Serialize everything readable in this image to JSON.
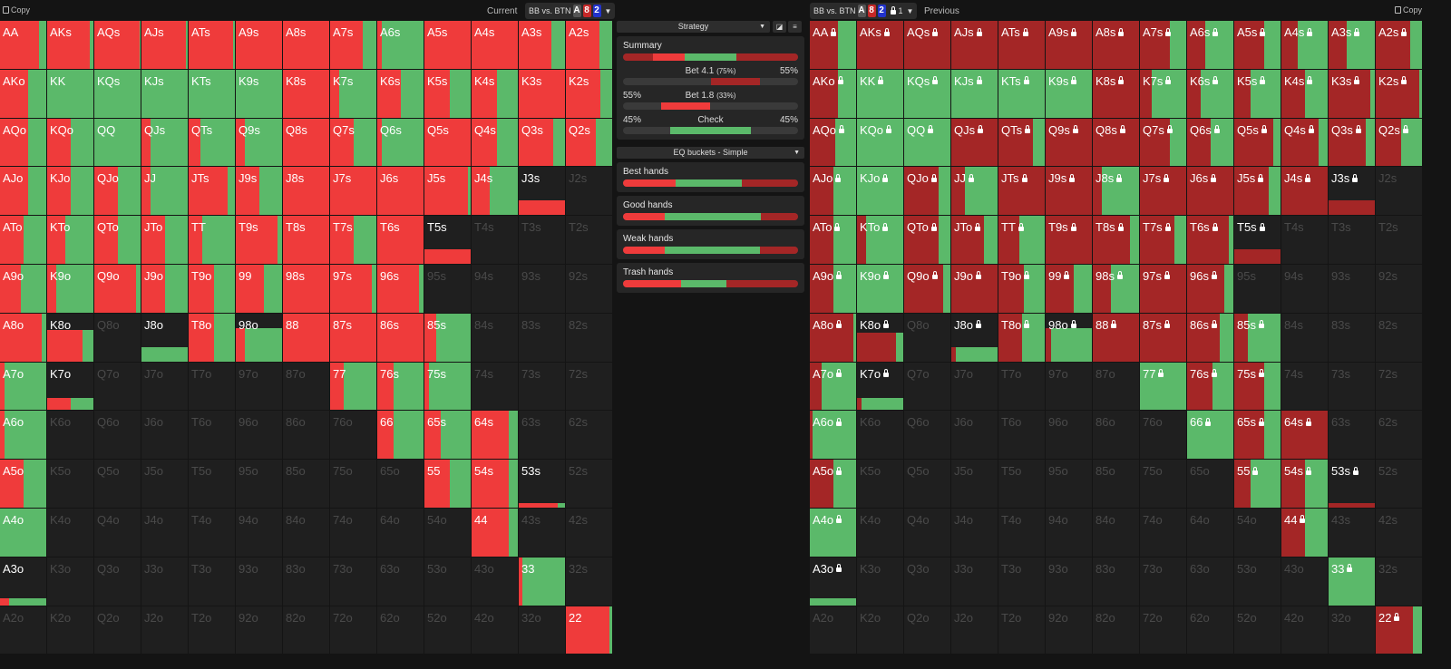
{
  "header": {
    "copy_left": "Copy",
    "current": "Current",
    "sel_left": {
      "text": "BB vs. BTN",
      "cards": [
        "A",
        "8",
        "2"
      ]
    },
    "sel_right": {
      "text": "BB vs. BTN",
      "cards": [
        "A",
        "8",
        "2"
      ],
      "lock_count": "1"
    },
    "previous": "Previous",
    "copy_right": "Copy"
  },
  "colors": {
    "bet_small": "#ef3b3b",
    "bet_big": "#a42626",
    "check": "#5bb96a",
    "out": "#1f1f1f"
  },
  "labels": [
    [
      "AA",
      "AKs",
      "AQs",
      "AJs",
      "ATs",
      "A9s",
      "A8s",
      "A7s",
      "A6s",
      "A5s",
      "A4s",
      "A3s",
      "A2s"
    ],
    [
      "AKo",
      "KK",
      "KQs",
      "KJs",
      "KTs",
      "K9s",
      "K8s",
      "K7s",
      "K6s",
      "K5s",
      "K4s",
      "K3s",
      "K2s"
    ],
    [
      "AQo",
      "KQo",
      "QQ",
      "QJs",
      "QTs",
      "Q9s",
      "Q8s",
      "Q7s",
      "Q6s",
      "Q5s",
      "Q4s",
      "Q3s",
      "Q2s"
    ],
    [
      "AJo",
      "KJo",
      "QJo",
      "JJ",
      "JTs",
      "J9s",
      "J8s",
      "J7s",
      "J6s",
      "J5s",
      "J4s",
      "J3s",
      "J2s"
    ],
    [
      "ATo",
      "KTo",
      "QTo",
      "JTo",
      "TT",
      "T9s",
      "T8s",
      "T7s",
      "T6s",
      "T5s",
      "T4s",
      "T3s",
      "T2s"
    ],
    [
      "A9o",
      "K9o",
      "Q9o",
      "J9o",
      "T9o",
      "99",
      "98s",
      "97s",
      "96s",
      "95s",
      "94s",
      "93s",
      "92s"
    ],
    [
      "A8o",
      "K8o",
      "Q8o",
      "J8o",
      "T8o",
      "98o",
      "88",
      "87s",
      "86s",
      "85s",
      "84s",
      "83s",
      "82s"
    ],
    [
      "A7o",
      "K7o",
      "Q7o",
      "J7o",
      "T7o",
      "97o",
      "87o",
      "77",
      "76s",
      "75s",
      "74s",
      "73s",
      "72s"
    ],
    [
      "A6o",
      "K6o",
      "Q6o",
      "J6o",
      "T6o",
      "96o",
      "86o",
      "76o",
      "66",
      "65s",
      "64s",
      "63s",
      "62s"
    ],
    [
      "A5o",
      "K5o",
      "Q5o",
      "J5o",
      "T5o",
      "95o",
      "85o",
      "75o",
      "65o",
      "55",
      "54s",
      "53s",
      "52s"
    ],
    [
      "A4o",
      "K4o",
      "Q4o",
      "J4o",
      "T4o",
      "94o",
      "84o",
      "74o",
      "64o",
      "54o",
      "44",
      "43s",
      "42s"
    ],
    [
      "A3o",
      "K3o",
      "Q3o",
      "J3o",
      "T3o",
      "93o",
      "83o",
      "73o",
      "63o",
      "53o",
      "43o",
      "33",
      "32s"
    ],
    [
      "A2o",
      "K2o",
      "Q2o",
      "J2o",
      "T2o",
      "92o",
      "82o",
      "72o",
      "62o",
      "52o",
      "42o",
      "32o",
      "22"
    ]
  ],
  "current_grid": [
    [
      [
        1,
        0.85
      ],
      [
        1,
        0.93
      ],
      [
        1,
        0.98
      ],
      [
        1,
        0.97
      ],
      [
        1,
        0.97
      ],
      [
        1,
        1
      ],
      [
        1,
        1
      ],
      [
        1,
        0.7
      ],
      [
        1,
        0.1
      ],
      [
        1,
        1
      ],
      [
        1,
        1
      ],
      [
        1,
        0.7
      ],
      [
        1,
        0.73
      ]
    ],
    [
      [
        1,
        0.6
      ],
      [
        1,
        0
      ],
      [
        1,
        0
      ],
      [
        1,
        0
      ],
      [
        1,
        0
      ],
      [
        1,
        0
      ],
      [
        1,
        1
      ],
      [
        1,
        0.2
      ],
      [
        1,
        0.5
      ],
      [
        1,
        0.55
      ],
      [
        1,
        0.55
      ],
      [
        1,
        1
      ],
      [
        1,
        0.75
      ]
    ],
    [
      [
        1,
        0.6
      ],
      [
        1,
        0.5
      ],
      [
        1,
        0
      ],
      [
        1,
        0.2
      ],
      [
        1,
        0.25
      ],
      [
        1,
        0.2
      ],
      [
        1,
        1
      ],
      [
        1,
        0.5
      ],
      [
        1,
        0.1
      ],
      [
        1,
        1
      ],
      [
        1,
        0.55
      ],
      [
        1,
        0.75
      ],
      [
        1,
        0.65
      ]
    ],
    [
      [
        1,
        0.6
      ],
      [
        1,
        0.5
      ],
      [
        1,
        0.5
      ],
      [
        1,
        0.2
      ],
      [
        1,
        0.85
      ],
      [
        1,
        0.5
      ],
      [
        1,
        1
      ],
      [
        1,
        1
      ],
      [
        1,
        1
      ],
      [
        1,
        0.95
      ],
      [
        1,
        0.4
      ],
      [
        0.3,
        1
      ],
      [
        0,
        0
      ]
    ],
    [
      [
        1,
        0.5
      ],
      [
        1,
        0.4
      ],
      [
        1,
        0.5
      ],
      [
        1,
        0.5
      ],
      [
        1,
        0.3
      ],
      [
        1,
        0.9
      ],
      [
        1,
        1
      ],
      [
        1,
        0.5
      ],
      [
        1,
        1
      ],
      [
        0.3,
        1
      ],
      [
        0,
        0
      ],
      [
        0,
        0
      ],
      [
        0,
        0
      ]
    ],
    [
      [
        1,
        0.45
      ],
      [
        1,
        0.2
      ],
      [
        1,
        0.9
      ],
      [
        1,
        0.5
      ],
      [
        1,
        0.55
      ],
      [
        1,
        0.6
      ],
      [
        1,
        1
      ],
      [
        1,
        0.9
      ],
      [
        1,
        0.9
      ],
      [
        0,
        0
      ],
      [
        0,
        0
      ],
      [
        0,
        0
      ],
      [
        0,
        0
      ]
    ],
    [
      [
        1,
        0.9
      ],
      [
        0.65,
        0.77
      ],
      [
        0,
        0
      ],
      [
        0.3,
        0
      ],
      [
        1,
        0.55
      ],
      [
        0.7,
        0.2
      ],
      [
        1,
        1
      ],
      [
        1,
        1
      ],
      [
        1,
        1
      ],
      [
        1,
        0.25
      ],
      [
        0,
        0
      ],
      [
        0,
        0
      ],
      [
        0,
        0
      ]
    ],
    [
      [
        1,
        0.1
      ],
      [
        0.25,
        0.5
      ],
      [
        0,
        0
      ],
      [
        0,
        0
      ],
      [
        0,
        0
      ],
      [
        0,
        0
      ],
      [
        0,
        0
      ],
      [
        1,
        0.3
      ],
      [
        1,
        0.35
      ],
      [
        1,
        0.1
      ],
      [
        0,
        0
      ],
      [
        0,
        0
      ],
      [
        0,
        0
      ]
    ],
    [
      [
        1,
        0.1
      ],
      [
        0,
        0
      ],
      [
        0,
        0
      ],
      [
        0,
        0
      ],
      [
        0,
        0
      ],
      [
        0,
        0
      ],
      [
        0,
        0
      ],
      [
        0,
        0
      ],
      [
        1,
        0.35
      ],
      [
        1,
        0.35
      ],
      [
        1,
        0.8
      ],
      [
        0,
        0
      ],
      [
        0,
        0
      ]
    ],
    [
      [
        1,
        0.5
      ],
      [
        0,
        0
      ],
      [
        0,
        0
      ],
      [
        0,
        0
      ],
      [
        0,
        0
      ],
      [
        0,
        0
      ],
      [
        0,
        0
      ],
      [
        0,
        0
      ],
      [
        0,
        0
      ],
      [
        1,
        0.55
      ],
      [
        1,
        0.8
      ],
      [
        0.1,
        0.85
      ],
      [
        0,
        0
      ]
    ],
    [
      [
        1,
        0
      ],
      [
        0,
        0
      ],
      [
        0,
        0
      ],
      [
        0,
        0
      ],
      [
        0,
        0
      ],
      [
        0,
        0
      ],
      [
        0,
        0
      ],
      [
        0,
        0
      ],
      [
        0,
        0
      ],
      [
        0,
        0
      ],
      [
        1,
        0.8
      ],
      [
        0,
        0
      ],
      [
        0,
        0
      ]
    ],
    [
      [
        0.15,
        0.2
      ],
      [
        0,
        0
      ],
      [
        0,
        0
      ],
      [
        0,
        0
      ],
      [
        0,
        0
      ],
      [
        0,
        0
      ],
      [
        0,
        0
      ],
      [
        0,
        0
      ],
      [
        0,
        0
      ],
      [
        0,
        0
      ],
      [
        0,
        0
      ],
      [
        1,
        0.07
      ],
      [
        0,
        0
      ]
    ],
    [
      [
        0,
        0
      ],
      [
        0,
        0
      ],
      [
        0,
        0
      ],
      [
        0,
        0
      ],
      [
        0,
        0
      ],
      [
        0,
        0
      ],
      [
        0,
        0
      ],
      [
        0,
        0
      ],
      [
        0,
        0
      ],
      [
        0,
        0
      ],
      [
        0,
        0
      ],
      [
        0,
        0
      ],
      [
        1,
        0.95
      ]
    ]
  ],
  "previous_grid": [
    [
      [
        1,
        0.6
      ],
      [
        1,
        1
      ],
      [
        1,
        1
      ],
      [
        1,
        1
      ],
      [
        1,
        1
      ],
      [
        1,
        1
      ],
      [
        1,
        1
      ],
      [
        1,
        0.65
      ],
      [
        1,
        0.4
      ],
      [
        1,
        0.65
      ],
      [
        1,
        0.35
      ],
      [
        1,
        0.4
      ],
      [
        1,
        0.75
      ]
    ],
    [
      [
        1,
        0.6
      ],
      [
        1,
        0
      ],
      [
        1,
        0
      ],
      [
        1,
        0
      ],
      [
        1,
        0
      ],
      [
        1,
        0
      ],
      [
        1,
        1
      ],
      [
        1,
        0.25
      ],
      [
        1,
        0.3
      ],
      [
        1,
        0.35
      ],
      [
        1,
        0.5
      ],
      [
        1,
        0.9
      ],
      [
        1,
        0.95
      ]
    ],
    [
      [
        1,
        0.55
      ],
      [
        1,
        0
      ],
      [
        1,
        0
      ],
      [
        1,
        1
      ],
      [
        1,
        0.75
      ],
      [
        1,
        1
      ],
      [
        1,
        1
      ],
      [
        1,
        0.65
      ],
      [
        1,
        0.5
      ],
      [
        1,
        0.85
      ],
      [
        1,
        0.8
      ],
      [
        1,
        0.8
      ],
      [
        1,
        0.55
      ]
    ],
    [
      [
        1,
        0.5
      ],
      [
        1,
        0
      ],
      [
        1,
        0.75
      ],
      [
        1,
        0.3
      ],
      [
        1,
        1
      ],
      [
        1,
        1
      ],
      [
        1,
        0.2
      ],
      [
        1,
        1
      ],
      [
        1,
        1
      ],
      [
        1,
        0.75
      ],
      [
        1,
        1
      ],
      [
        0.3,
        1
      ],
      [
        0,
        0
      ]
    ],
    [
      [
        1,
        0.5
      ],
      [
        1,
        0.2
      ],
      [
        1,
        0.75
      ],
      [
        1,
        0.7
      ],
      [
        1,
        0.45
      ],
      [
        1,
        1
      ],
      [
        1,
        0.8
      ],
      [
        1,
        0.75
      ],
      [
        1,
        0.9
      ],
      [
        0.3,
        1
      ],
      [
        0,
        0
      ],
      [
        0,
        0
      ],
      [
        0,
        0
      ]
    ],
    [
      [
        1,
        0.5
      ],
      [
        1,
        0
      ],
      [
        1,
        0.85
      ],
      [
        1,
        1
      ],
      [
        1,
        0.55
      ],
      [
        1,
        0.6
      ],
      [
        1,
        0.4
      ],
      [
        1,
        1
      ],
      [
        1,
        0.8
      ],
      [
        0,
        0
      ],
      [
        0,
        0
      ],
      [
        0,
        0
      ],
      [
        0,
        0
      ]
    ],
    [
      [
        1,
        0.95
      ],
      [
        0.6,
        0.85
      ],
      [
        0,
        0
      ],
      [
        0.3,
        0.1
      ],
      [
        1,
        0.5
      ],
      [
        0.7,
        0.12
      ],
      [
        1,
        1
      ],
      [
        1,
        1
      ],
      [
        1,
        0.7
      ],
      [
        1,
        0.3
      ],
      [
        0,
        0
      ],
      [
        0,
        0
      ],
      [
        0,
        0
      ]
    ],
    [
      [
        1,
        0.25
      ],
      [
        0.25,
        0.1
      ],
      [
        0,
        0
      ],
      [
        0,
        0
      ],
      [
        0,
        0
      ],
      [
        0,
        0
      ],
      [
        0,
        0
      ],
      [
        1,
        0
      ],
      [
        1,
        0.55
      ],
      [
        1,
        0.65
      ],
      [
        0,
        0
      ],
      [
        0,
        0
      ],
      [
        0,
        0
      ]
    ],
    [
      [
        1,
        0.05
      ],
      [
        0,
        0
      ],
      [
        0,
        0
      ],
      [
        0,
        0
      ],
      [
        0,
        0
      ],
      [
        0,
        0
      ],
      [
        0,
        0
      ],
      [
        0,
        0
      ],
      [
        1,
        0
      ],
      [
        1,
        0.65
      ],
      [
        1,
        1
      ],
      [
        0,
        0
      ],
      [
        0,
        0
      ]
    ],
    [
      [
        1,
        0.5
      ],
      [
        0,
        0
      ],
      [
        0,
        0
      ],
      [
        0,
        0
      ],
      [
        0,
        0
      ],
      [
        0,
        0
      ],
      [
        0,
        0
      ],
      [
        0,
        0
      ],
      [
        0,
        0
      ],
      [
        1,
        0.35
      ],
      [
        1,
        0.5
      ],
      [
        0.1,
        1
      ],
      [
        0,
        0
      ]
    ],
    [
      [
        1,
        0
      ],
      [
        0,
        0
      ],
      [
        0,
        0
      ],
      [
        0,
        0
      ],
      [
        0,
        0
      ],
      [
        0,
        0
      ],
      [
        0,
        0
      ],
      [
        0,
        0
      ],
      [
        0,
        0
      ],
      [
        0,
        0
      ],
      [
        1,
        0.5
      ],
      [
        0,
        0
      ],
      [
        0,
        0
      ]
    ],
    [
      [
        0.15,
        0
      ],
      [
        0,
        0
      ],
      [
        0,
        0
      ],
      [
        0,
        0
      ],
      [
        0,
        0
      ],
      [
        0,
        0
      ],
      [
        0,
        0
      ],
      [
        0,
        0
      ],
      [
        0,
        0
      ],
      [
        0,
        0
      ],
      [
        0,
        0
      ],
      [
        1,
        0
      ],
      [
        0,
        0
      ]
    ],
    [
      [
        0,
        0
      ],
      [
        0,
        0
      ],
      [
        0,
        0
      ],
      [
        0,
        0
      ],
      [
        0,
        0
      ],
      [
        0,
        0
      ],
      [
        0,
        0
      ],
      [
        0,
        0
      ],
      [
        0,
        0
      ],
      [
        0,
        0
      ],
      [
        0,
        0
      ],
      [
        0,
        0
      ],
      [
        1,
        0.8
      ]
    ]
  ],
  "panel": {
    "strategy_label": "Strategy",
    "summary": {
      "title": "Summary",
      "segments": [
        [
          "bet_big",
          17
        ],
        [
          "bet_small",
          18
        ],
        [
          "check",
          30
        ],
        [
          "bet_big",
          35
        ]
      ]
    },
    "actions": [
      {
        "label": "Bet  4.1",
        "sub": "(75%)",
        "left": "",
        "right": "55%",
        "range": [
          50,
          78
        ],
        "color": "bet_big"
      },
      {
        "label": "Bet  1.8",
        "sub": "(33%)",
        "left": "55%",
        "right": "",
        "range": [
          22,
          50
        ],
        "color": "bet_small"
      },
      {
        "label": "Check",
        "sub": "",
        "left": "45%",
        "right": "45%",
        "range": [
          27,
          73
        ],
        "color": "check"
      }
    ],
    "eq_label": "EQ buckets - Simple",
    "buckets": [
      {
        "title": "Best hands",
        "segments": [
          [
            "bet_small",
            30
          ],
          [
            "check",
            38
          ],
          [
            "bet_big",
            32
          ]
        ]
      },
      {
        "title": "Good hands",
        "segments": [
          [
            "bet_small",
            24
          ],
          [
            "check",
            55
          ],
          [
            "bet_big",
            21
          ]
        ]
      },
      {
        "title": "Weak hands",
        "segments": [
          [
            "bet_small",
            24
          ],
          [
            "check",
            54
          ],
          [
            "bet_big",
            22
          ]
        ]
      },
      {
        "title": "Trash hands",
        "segments": [
          [
            "bet_small",
            33
          ],
          [
            "check",
            26
          ],
          [
            "bet_big",
            41
          ]
        ]
      }
    ]
  }
}
